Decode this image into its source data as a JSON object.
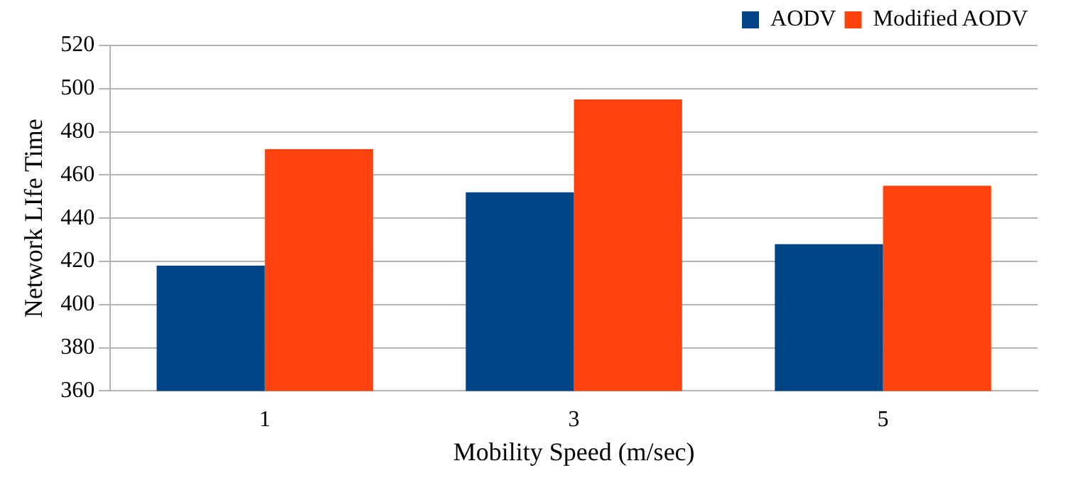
{
  "chart_data": {
    "type": "bar",
    "xlabel": "Mobility Speed (m/sec)",
    "ylabel": "Network LIfe Time",
    "categories": [
      "1",
      "3",
      "5"
    ],
    "series": [
      {
        "name": "AODV",
        "color": "#004586",
        "values": [
          418,
          452,
          428
        ]
      },
      {
        "name": "Modified AODV",
        "color": "#ff420e",
        "values": [
          472,
          495,
          455
        ]
      }
    ],
    "ylim": [
      360,
      520
    ],
    "yticks": [
      360,
      380,
      400,
      420,
      440,
      460,
      480,
      500,
      520
    ],
    "grid": "y",
    "legend": "top right"
  }
}
